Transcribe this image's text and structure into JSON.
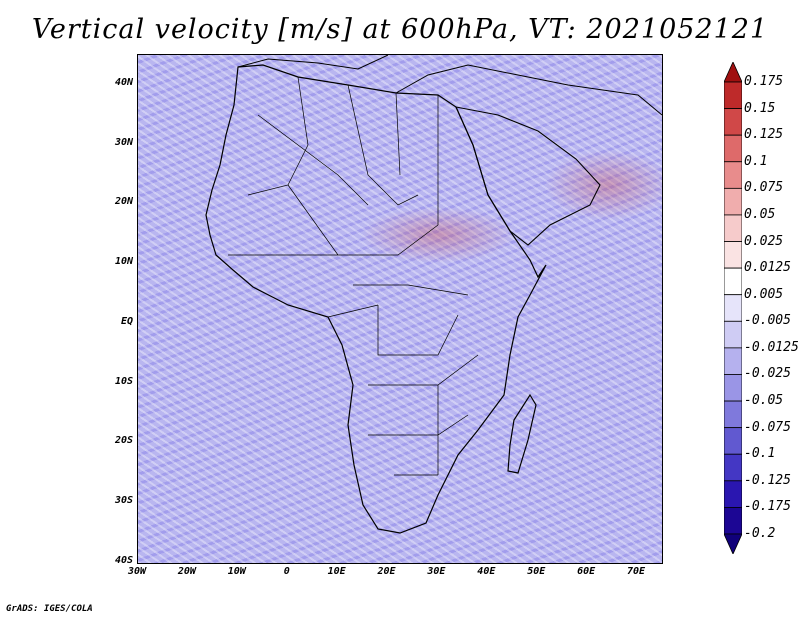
{
  "title": "Vertical velocity [m/s] at 600hPa, VT: 2021052121",
  "credit": "GrADS: IGES/COLA",
  "map": {
    "region": "Africa",
    "lon_range": [
      -30,
      75
    ],
    "lat_range": [
      -40,
      45
    ],
    "lat_labels": [
      "40N",
      "30N",
      "20N",
      "10N",
      "EQ",
      "10S",
      "20S",
      "30S",
      "40S"
    ],
    "lat_values": [
      40,
      30,
      20,
      10,
      0,
      -10,
      -20,
      -30,
      -40
    ],
    "lon_labels": [
      "30W",
      "20W",
      "10W",
      "0",
      "10E",
      "20E",
      "30E",
      "40E",
      "50E",
      "60E",
      "70E"
    ],
    "lon_values": [
      -30,
      -20,
      -10,
      0,
      10,
      20,
      30,
      40,
      50,
      60,
      70
    ]
  },
  "colorbar": {
    "labels": [
      "0.175",
      "0.15",
      "0.125",
      "0.1",
      "0.075",
      "0.05",
      "0.025",
      "0.0125",
      "0.005",
      "-0.005",
      "-0.0125",
      "-0.025",
      "-0.05",
      "-0.075",
      "-0.1",
      "-0.125",
      "-0.175",
      "-0.2"
    ],
    "colors": [
      "#a01010",
      "#be2a2a",
      "#d04848",
      "#de6a6a",
      "#e88c8c",
      "#f0adad",
      "#f6cbcb",
      "#fae3e3",
      "#ffffff",
      "#e6e4fa",
      "#cfccf4",
      "#b5b1ee",
      "#9a95e6",
      "#7f79dc",
      "#6159d0",
      "#4437c4",
      "#2a16b0",
      "#1c0694",
      "#10007a"
    ]
  }
}
